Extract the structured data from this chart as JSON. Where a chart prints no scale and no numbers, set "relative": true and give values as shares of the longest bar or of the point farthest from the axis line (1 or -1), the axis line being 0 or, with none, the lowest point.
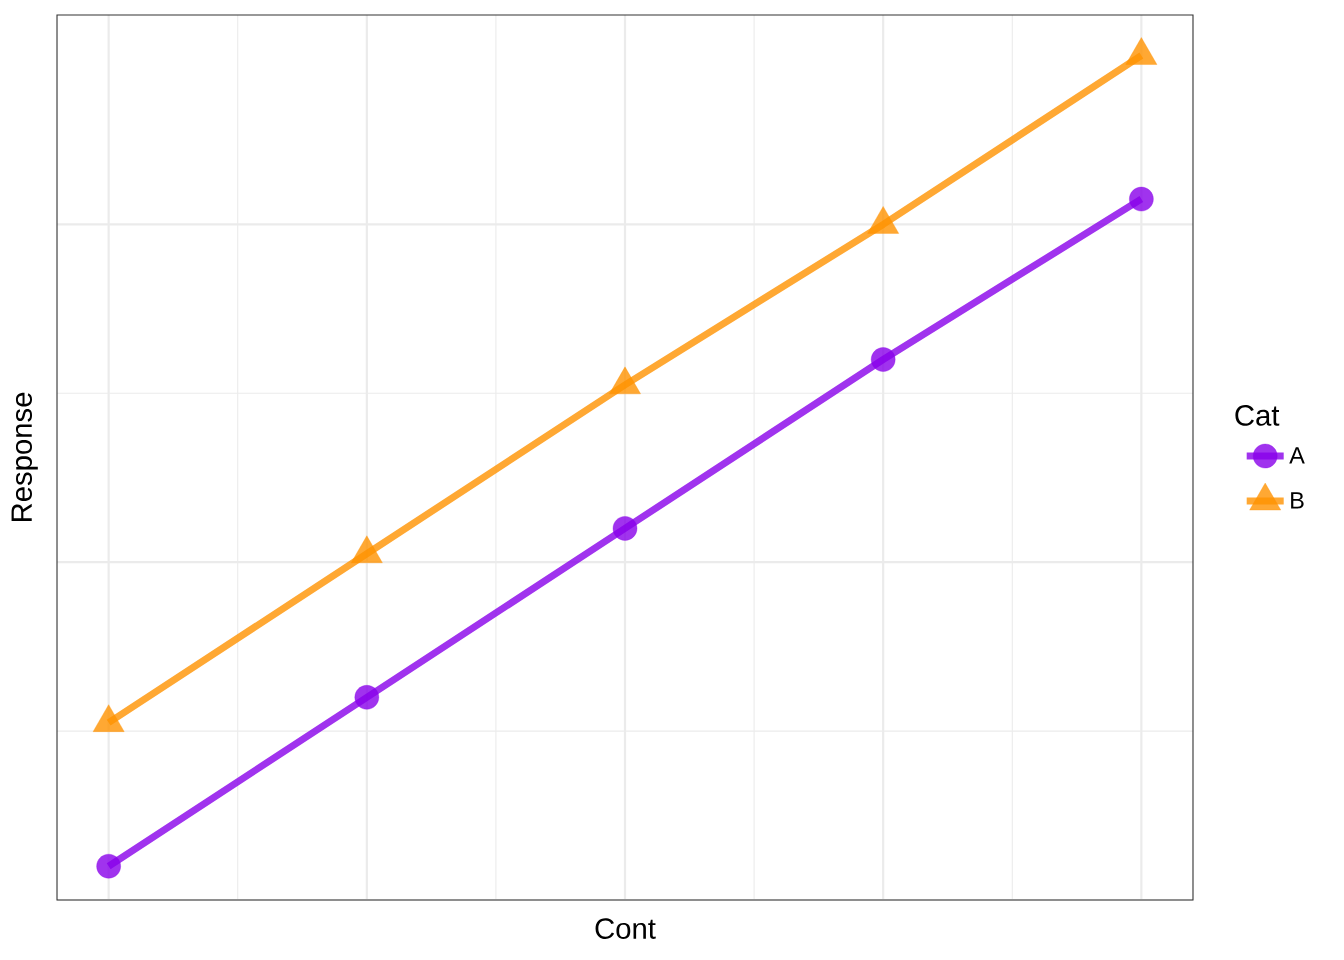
{
  "chart_data": {
    "type": "line",
    "relative": true,
    "xlabel": "Cont",
    "ylabel": "Response",
    "legend_title": "Cat",
    "legend": "right",
    "grid": true,
    "line_style": "solid",
    "categories": [
      null,
      null,
      null,
      null,
      null
    ],
    "series": [
      {
        "name": "A",
        "color": "#a033ee",
        "marker": "circle",
        "values": [
          0.04,
          0.24,
          0.44,
          0.64,
          0.83
        ]
      },
      {
        "name": "B",
        "color": "#ffa832",
        "marker": "triangle",
        "values": [
          0.21,
          0.41,
          0.61,
          0.8,
          1
        ]
      }
    ]
  }
}
